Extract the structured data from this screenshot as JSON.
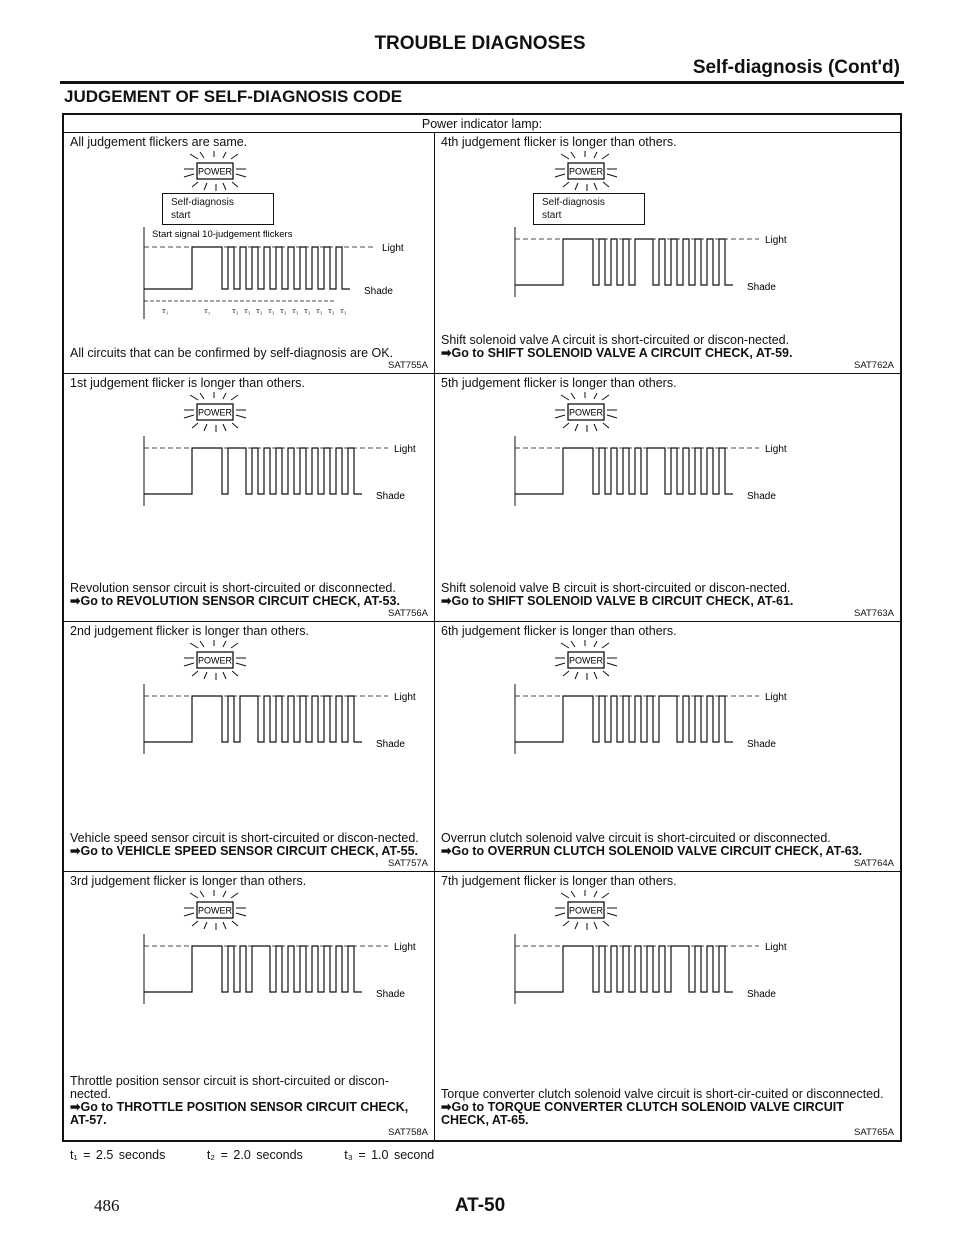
{
  "header": {
    "title": "TROUBLE DIAGNOSES",
    "subtitle": "Self-diagnosis (Cont'd)",
    "section": "JUDGEMENT OF SELF-DIAGNOSIS CODE"
  },
  "table_header": "Power indicator lamp:",
  "lamp_label": "POWER",
  "labels": {
    "light": "Light",
    "shade": "Shade",
    "self_diag": "Self-diagnosis",
    "start": "start",
    "start_signal": "Start signal 10-judgement flickers",
    "t_marks": [
      "T₁",
      "T₂",
      "T₃",
      "T₃",
      "T₃",
      "T₃",
      "T₃",
      "T₃",
      "T₃",
      "T₃",
      "T₃",
      "T₃"
    ]
  },
  "cells": [
    {
      "title": "All judgement flickers are same.",
      "long_index": 0,
      "show_diag": true,
      "desc": "All circuits that can be confirmed by self-diagnosis are OK.",
      "goto": "",
      "code": "SAT755A"
    },
    {
      "title": "4th judgement flicker is longer than others.",
      "long_index": 4,
      "show_diag": true,
      "desc": "Shift solenoid valve A circuit is short-circuited or discon-nected.",
      "goto": "➡Go to SHIFT SOLENOID VALVE A CIRCUIT CHECK, AT-59.",
      "code": "SAT762A"
    },
    {
      "title": "1st judgement flicker is longer than others.",
      "long_index": 1,
      "show_diag": false,
      "desc": "Revolution sensor circuit is short-circuited or disconnected.",
      "goto": "➡Go to REVOLUTION SENSOR CIRCUIT CHECK, AT-53.",
      "code": "SAT756A"
    },
    {
      "title": "5th judgement flicker is longer than others.",
      "long_index": 5,
      "show_diag": false,
      "desc": "Shift solenoid valve B circuit is short-circuited or discon-nected.",
      "goto": "➡Go to SHIFT SOLENOID VALVE B CIRCUIT CHECK, AT-61.",
      "code": "SAT763A"
    },
    {
      "title": "2nd judgement flicker is longer than others.",
      "long_index": 2,
      "show_diag": false,
      "desc": "Vehicle speed sensor circuit is short-circuited or discon-nected.",
      "goto": "➡Go to VEHICLE SPEED SENSOR CIRCUIT CHECK, AT-55.",
      "code": "SAT757A"
    },
    {
      "title": "6th judgement flicker is longer than others.",
      "long_index": 6,
      "show_diag": false,
      "desc": "Overrun clutch solenoid valve circuit is short-circuited or disconnected.",
      "goto": "➡Go to OVERRUN CLUTCH SOLENOID VALVE CIRCUIT CHECK, AT-63.",
      "code": "SAT764A"
    },
    {
      "title": "3rd judgement flicker is longer than others.",
      "long_index": 3,
      "show_diag": false,
      "desc": "Throttle position sensor circuit is short-circuited or discon-nected.",
      "goto": "➡Go to THROTTLE POSITION SENSOR CIRCUIT CHECK, AT-57.",
      "code": "SAT758A"
    },
    {
      "title": "7th judgement flicker is longer than others.",
      "long_index": 7,
      "show_diag": false,
      "desc": "Torque converter clutch solenoid valve circuit is short-cir-cuited or disconnected.",
      "goto": "➡Go to TORQUE CONVERTER CLUTCH SOLENOID VALVE CIRCUIT CHECK, AT-65.",
      "code": "SAT765A"
    }
  ],
  "footer": {
    "t1": "t₁ = 2.5 seconds",
    "t2": "t₂ = 2.0 seconds",
    "t3": "t₃ = 1.0 second",
    "page_number": "486",
    "page_code": "AT-50"
  }
}
